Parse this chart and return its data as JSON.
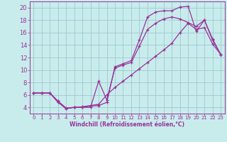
{
  "xlabel": "Windchill (Refroidissement éolien,°C)",
  "background_color": "#c8ecec",
  "grid_color": "#a0c8d0",
  "line_color": "#993399",
  "xlim": [
    -0.5,
    23.5
  ],
  "ylim": [
    3,
    21
  ],
  "xticks": [
    0,
    1,
    2,
    3,
    4,
    5,
    6,
    7,
    8,
    9,
    10,
    11,
    12,
    13,
    14,
    15,
    16,
    17,
    18,
    19,
    20,
    21,
    22,
    23
  ],
  "yticks": [
    4,
    6,
    8,
    10,
    12,
    14,
    16,
    18,
    20
  ],
  "line1_x": [
    0,
    1,
    2,
    3,
    4,
    5,
    6,
    7,
    8,
    9,
    10,
    11,
    12,
    13,
    14,
    15,
    16,
    17,
    18,
    19,
    20,
    21,
    22,
    23
  ],
  "line1_y": [
    6.3,
    6.3,
    6.3,
    5.0,
    3.8,
    4.0,
    4.0,
    4.2,
    4.3,
    4.8,
    10.5,
    11.0,
    11.5,
    14.8,
    18.5,
    19.3,
    19.5,
    19.5,
    20.1,
    20.2,
    16.2,
    18.0,
    14.8,
    12.5
  ],
  "line2_x": [
    0,
    1,
    2,
    3,
    4,
    5,
    6,
    7,
    8,
    9,
    10,
    11,
    12,
    13,
    14,
    15,
    16,
    17,
    18,
    19,
    20,
    21,
    22,
    23
  ],
  "line2_y": [
    6.3,
    6.3,
    6.3,
    4.8,
    3.8,
    4.0,
    4.0,
    4.0,
    8.2,
    5.2,
    10.3,
    10.8,
    11.2,
    13.8,
    16.5,
    17.5,
    18.2,
    18.5,
    18.2,
    17.6,
    17.0,
    18.0,
    15.0,
    12.5
  ],
  "line3_x": [
    0,
    1,
    2,
    3,
    4,
    5,
    6,
    7,
    8,
    9,
    10,
    11,
    12,
    13,
    14,
    15,
    16,
    17,
    18,
    19,
    20,
    21,
    22,
    23
  ],
  "line3_y": [
    6.3,
    6.3,
    6.3,
    5.0,
    3.9,
    4.0,
    4.1,
    4.3,
    4.5,
    6.0,
    7.2,
    8.2,
    9.2,
    10.2,
    11.2,
    12.2,
    13.2,
    14.3,
    16.0,
    17.5,
    16.5,
    16.8,
    14.2,
    12.5
  ]
}
